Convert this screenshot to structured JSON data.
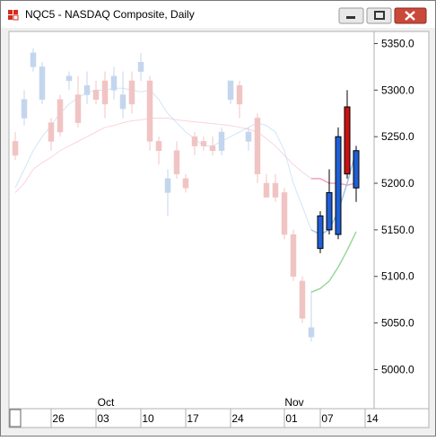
{
  "chart_data": {
    "type": "candlestick",
    "title": "NQC5 - NASDAQ Composite, Daily",
    "categories": [
      null,
      null,
      null,
      null,
      null,
      "26",
      null,
      null,
      null,
      null,
      "03",
      null,
      null,
      null,
      null,
      "10",
      null,
      null,
      null,
      null,
      "17",
      null,
      null,
      null,
      null,
      "24",
      null,
      null,
      null,
      null,
      null,
      "01",
      null,
      null,
      null,
      "07",
      null,
      null,
      null,
      null,
      "14"
    ],
    "months": [
      null,
      null,
      null,
      null,
      null,
      null,
      null,
      null,
      null,
      null,
      "Oct",
      null,
      null,
      null,
      null,
      null,
      null,
      null,
      null,
      null,
      null,
      null,
      null,
      null,
      null,
      null,
      null,
      null,
      null,
      null,
      null,
      "Nov",
      null,
      null,
      null,
      null,
      null,
      null,
      null,
      null,
      null
    ],
    "open": [
      5245,
      5270,
      5325,
      5290,
      5265,
      5290,
      5310,
      5295,
      5295,
      5300,
      5310,
      5300,
      5280,
      5310,
      5320,
      5310,
      5245,
      5190,
      5235,
      5205,
      5250,
      5245,
      5240,
      5235,
      5290,
      5305,
      5245,
      5270,
      5200,
      5200,
      5190,
      5145,
      5095,
      5035,
      5130,
      5150,
      5145,
      5282,
      5195,
      null,
      null
    ],
    "high": [
      5255,
      5300,
      5345,
      5330,
      5270,
      5295,
      5320,
      5315,
      5320,
      5310,
      5320,
      5325,
      5320,
      5320,
      5340,
      5315,
      5250,
      5215,
      5245,
      5210,
      5255,
      5250,
      5250,
      5260,
      5310,
      5310,
      5260,
      5275,
      5210,
      5210,
      5195,
      5150,
      5100,
      5085,
      5170,
      5215,
      5260,
      5300,
      5240,
      null,
      null
    ],
    "low": [
      5225,
      5262,
      5320,
      5285,
      5235,
      5250,
      5300,
      5260,
      5285,
      5285,
      5270,
      5290,
      5270,
      5275,
      5310,
      5235,
      5220,
      5165,
      5205,
      5190,
      5230,
      5235,
      5230,
      5230,
      5285,
      5270,
      5235,
      5200,
      5185,
      5180,
      5140,
      5095,
      5050,
      5030,
      5125,
      5145,
      5140,
      5205,
      5180,
      null,
      null
    ],
    "close": [
      5230,
      5290,
      5340,
      5325,
      5245,
      5255,
      5315,
      5265,
      5305,
      5290,
      5285,
      5315,
      5295,
      5285,
      5330,
      5245,
      5235,
      5205,
      5210,
      5195,
      5240,
      5240,
      5235,
      5255,
      5310,
      5285,
      5255,
      5210,
      5185,
      5185,
      5145,
      5100,
      5055,
      5045,
      5165,
      5190,
      5250,
      5210,
      5235,
      null,
      null
    ],
    "up_color": "#1f5fd6",
    "down_color": "#cc1111",
    "faded_up_color": "#c4d6ee",
    "faded_down_color": "#f1c4c4",
    "highlight_start": 34,
    "series": [
      {
        "color": "#f2a0b8",
        "values": [
          5190,
          5200,
          5215,
          5222,
          5228,
          5235,
          5240,
          5245,
          5250,
          5255,
          5260,
          5262,
          5265,
          5267,
          5268,
          5270,
          5270,
          5270,
          5268,
          5267,
          5266,
          5265,
          5264,
          5263,
          5262,
          5260,
          5258,
          5255,
          5248,
          5240,
          5230,
          5220,
          5212,
          5205,
          5205,
          5200,
          5200,
          5198,
          5200,
          null,
          null
        ]
      },
      {
        "color": "#9cc8ea",
        "values": [
          5195,
          5215,
          5235,
          5250,
          5262,
          5275,
          5285,
          5292,
          5297,
          5300,
          5300,
          5302,
          5302,
          5300,
          5298,
          5300,
          5290,
          5275,
          5265,
          5255,
          5248,
          5240,
          5240,
          5245,
          5250,
          5255,
          5260,
          5265,
          5262,
          5255,
          5235,
          5200,
          5175,
          5150,
          5145,
          5150,
          5170,
          5200,
          5235,
          null,
          null
        ]
      },
      {
        "color": "#9ad79a",
        "values": [
          null,
          null,
          null,
          null,
          null,
          null,
          null,
          null,
          null,
          null,
          null,
          null,
          null,
          null,
          null,
          null,
          null,
          null,
          null,
          null,
          null,
          null,
          null,
          null,
          null,
          null,
          null,
          null,
          null,
          null,
          null,
          null,
          null,
          5083,
          5087,
          5095,
          5110,
          5128,
          5148,
          null,
          null
        ]
      }
    ],
    "ylim": [
      4958,
      5363
    ],
    "yticks": [
      {
        "value": 5000,
        "label": "5000.0"
      },
      {
        "value": 5050,
        "label": "5050.0"
      },
      {
        "value": 5100,
        "label": "5100.0"
      },
      {
        "value": 5150,
        "label": "5150.0"
      },
      {
        "value": 5200,
        "label": "5200.0"
      },
      {
        "value": 5250,
        "label": "5250.0"
      },
      {
        "value": 5300,
        "label": "5300.0"
      },
      {
        "value": 5350,
        "label": "5350.0"
      }
    ]
  }
}
